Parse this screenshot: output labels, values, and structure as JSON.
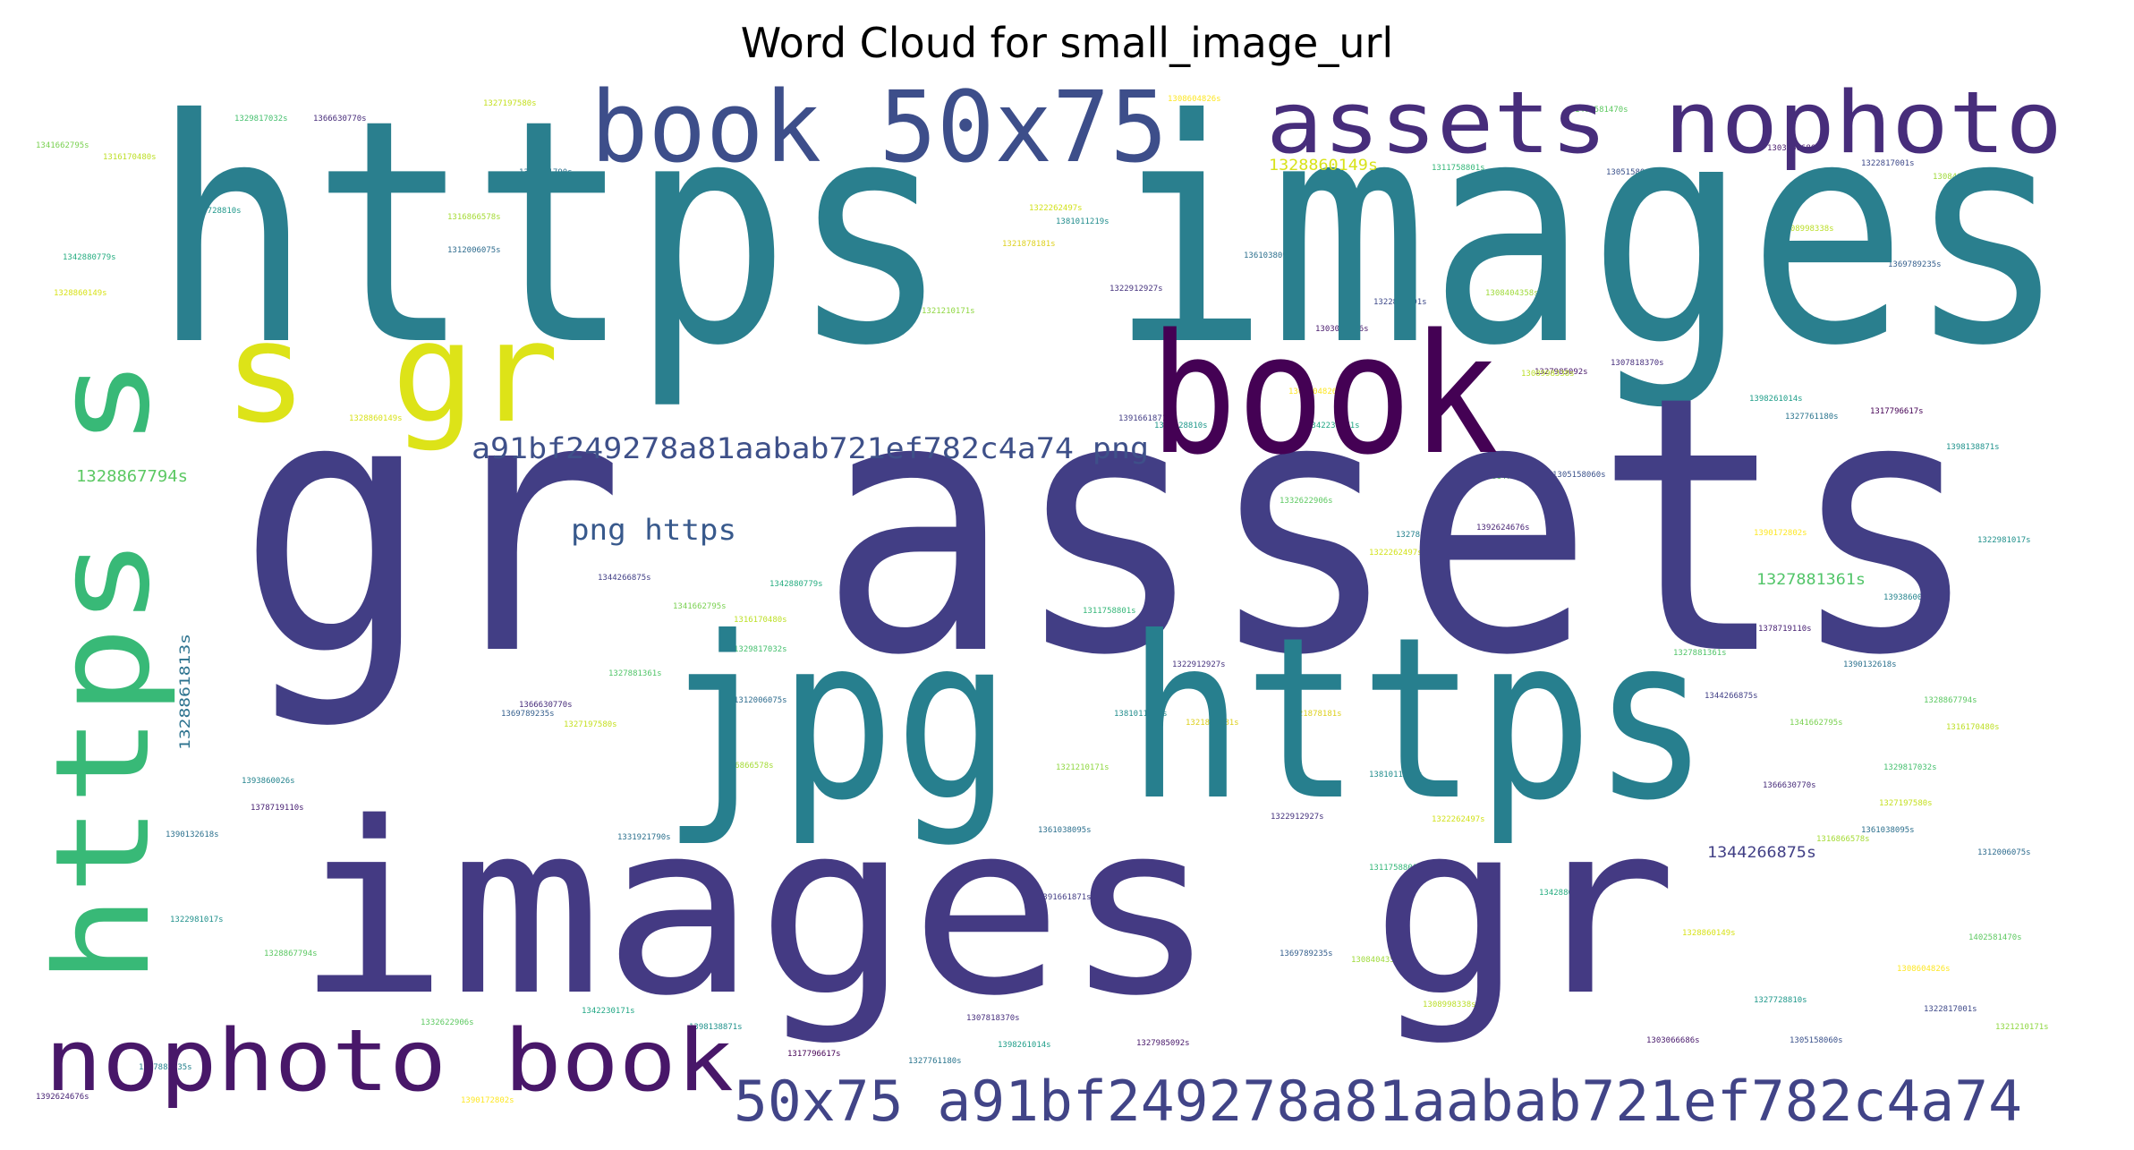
{
  "title": "Word Cloud for small_image_url",
  "words": [
    {
      "text": "https images",
      "color": "#2a7f8e"
    },
    {
      "text": "gr assets",
      "color": "#423e85"
    },
    {
      "text": "images gr",
      "color": "#443a83"
    },
    {
      "text": "jpg https",
      "color": "#277f8e"
    },
    {
      "text": "https s",
      "color": "#38b977"
    },
    {
      "text": "book",
      "color": "#440154"
    },
    {
      "text": "s gr",
      "color": "#dde318"
    },
    {
      "text": "book 50x75",
      "color": "#3d4e8a"
    },
    {
      "text": "assets nophoto",
      "color": "#472d7b"
    },
    {
      "text": "nophoto book",
      "color": "#481769"
    },
    {
      "text": "50x75 a91bf249278a81aabab721ef782c4a74",
      "color": "#414487"
    },
    {
      "text": "a91bf249278a81aabab721ef782c4a74 png",
      "color": "#3e5089"
    },
    {
      "text": "png https",
      "color": "#38598c"
    },
    {
      "text": "1328867794s",
      "color": "#5cc863"
    },
    {
      "text": "1328860149s",
      "color": "#d8e219"
    },
    {
      "text": "1327881361s",
      "color": "#52c569"
    },
    {
      "text": "1344266875s",
      "color": "#424086"
    },
    {
      "text": "1328861813s",
      "color": "#2c728e"
    }
  ],
  "small_words": [
    {
      "text": "1341662795s",
      "color": "#7ad151"
    },
    {
      "text": "1316170480s",
      "color": "#bddf26"
    },
    {
      "text": "1329817032s",
      "color": "#46c06f"
    },
    {
      "text": "1366630770s",
      "color": "#472c7a"
    },
    {
      "text": "1327197580s",
      "color": "#c5e021"
    },
    {
      "text": "1331921790s",
      "color": "#2d718e"
    },
    {
      "text": "1316866578s",
      "color": "#a5db36"
    },
    {
      "text": "1312006075s",
      "color": "#2f6c8e"
    },
    {
      "text": "1342880779s",
      "color": "#27ad81"
    },
    {
      "text": "1328860149s",
      "color": "#d8e219"
    },
    {
      "text": "1327728810s",
      "color": "#1f988b"
    },
    {
      "text": "1308604826s",
      "color": "#fde725"
    },
    {
      "text": "1402581470s",
      "color": "#5ec962"
    },
    {
      "text": "1305158060s",
      "color": "#3b528b"
    },
    {
      "text": "1303066686s",
      "color": "#481a6c"
    },
    {
      "text": "1322817001s",
      "color": "#3e4989"
    },
    {
      "text": "1308404358s",
      "color": "#9fda3a"
    },
    {
      "text": "1308998338s",
      "color": "#bade28"
    },
    {
      "text": "1369789235s",
      "color": "#355f8d"
    },
    {
      "text": "1311758801s",
      "color": "#35b779"
    },
    {
      "text": "1322262497s",
      "color": "#d2e21b"
    },
    {
      "text": "1381011219s",
      "color": "#228d8d"
    },
    {
      "text": "1321878181s",
      "color": "#ddd01e"
    },
    {
      "text": "1322912927s",
      "color": "#46337e"
    },
    {
      "text": "1361038095s",
      "color": "#2d708e"
    },
    {
      "text": "1321210171s",
      "color": "#90d743"
    },
    {
      "text": "1391661871s",
      "color": "#433e85"
    },
    {
      "text": "1327985092s",
      "color": "#48186a"
    },
    {
      "text": "1307818370s",
      "color": "#472f7d"
    },
    {
      "text": "1398261014s",
      "color": "#1f9e89"
    },
    {
      "text": "1327761180s",
      "color": "#2b758e"
    },
    {
      "text": "1317796617s",
      "color": "#440154"
    },
    {
      "text": "1398138871s",
      "color": "#20928c"
    },
    {
      "text": "1342230171s",
      "color": "#22a785"
    },
    {
      "text": "1332622906s",
      "color": "#5ec962"
    },
    {
      "text": "1327885535s",
      "color": "#26828e"
    },
    {
      "text": "1392624676s",
      "color": "#482475"
    },
    {
      "text": "1390172802s",
      "color": "#fde725"
    },
    {
      "text": "1322981017s",
      "color": "#21918c"
    },
    {
      "text": "1393860026s",
      "color": "#25848e"
    },
    {
      "text": "1378719110s",
      "color": "#482173"
    },
    {
      "text": "1390132618s",
      "color": "#2c718e"
    },
    {
      "text": "1328867794s",
      "color": "#5cc863"
    },
    {
      "text": "1327881361s",
      "color": "#52c569"
    },
    {
      "text": "1344266875s",
      "color": "#424086"
    }
  ]
}
